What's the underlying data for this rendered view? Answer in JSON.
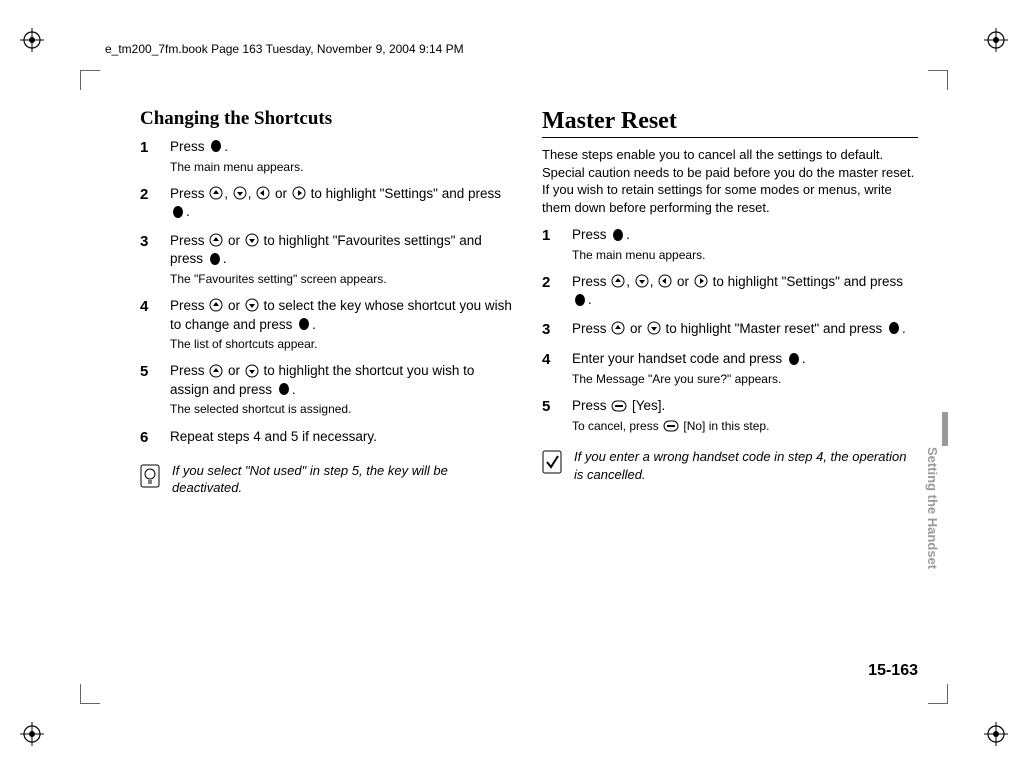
{
  "header": "e_tm200_7fm.book  Page 163  Tuesday, November 9, 2004  9:14 PM",
  "sideTab": "Setting the Handset",
  "pageNumber": "15-163",
  "left": {
    "title": "Changing the Shortcuts",
    "steps": [
      {
        "num": "1",
        "parts": [
          "Press ",
          {
            "icon": "center"
          },
          "."
        ],
        "sub": "The main menu appears."
      },
      {
        "num": "2",
        "parts": [
          "Press ",
          {
            "icon": "up"
          },
          ", ",
          {
            "icon": "down"
          },
          ", ",
          {
            "icon": "left"
          },
          " or ",
          {
            "icon": "right"
          },
          " to highlight \"Settings\" and press ",
          {
            "icon": "center"
          },
          "."
        ]
      },
      {
        "num": "3",
        "parts": [
          "Press ",
          {
            "icon": "up"
          },
          " or ",
          {
            "icon": "down"
          },
          " to highlight \"Favourites settings\" and press ",
          {
            "icon": "center"
          },
          "."
        ],
        "sub": "The \"Favourites setting\" screen appears."
      },
      {
        "num": "4",
        "parts": [
          "Press ",
          {
            "icon": "up"
          },
          " or ",
          {
            "icon": "down"
          },
          " to select the key whose shortcut you wish to change and press ",
          {
            "icon": "center"
          },
          "."
        ],
        "sub": "The list of shortcuts appear."
      },
      {
        "num": "5",
        "parts": [
          "Press ",
          {
            "icon": "up"
          },
          " or ",
          {
            "icon": "down"
          },
          " to highlight the shortcut you wish to assign and press ",
          {
            "icon": "center"
          },
          "."
        ],
        "sub": "The selected shortcut is assigned."
      },
      {
        "num": "6",
        "parts": [
          "Repeat steps 4 and 5 if necessary."
        ]
      }
    ],
    "note": {
      "icon": "bulb",
      "text": "If you select \"Not used\" in step 5, the key will be deactivated."
    }
  },
  "right": {
    "title": "Master Reset",
    "intro": "These steps enable you to cancel all the settings to default. Special caution needs to be paid before you do the master reset. If you wish to retain settings for some modes or menus, write them down before performing the reset.",
    "steps": [
      {
        "num": "1",
        "parts": [
          "Press ",
          {
            "icon": "center"
          },
          "."
        ],
        "sub": "The main menu appears."
      },
      {
        "num": "2",
        "parts": [
          "Press ",
          {
            "icon": "up"
          },
          ", ",
          {
            "icon": "down"
          },
          ", ",
          {
            "icon": "left"
          },
          " or ",
          {
            "icon": "right"
          },
          " to highlight \"Settings\" and press ",
          {
            "icon": "center"
          },
          "."
        ]
      },
      {
        "num": "3",
        "parts": [
          "Press ",
          {
            "icon": "up"
          },
          " or ",
          {
            "icon": "down"
          },
          " to highlight \"Master reset\" and press ",
          {
            "icon": "center"
          },
          "."
        ]
      },
      {
        "num": "4",
        "parts": [
          "Enter your handset code and press ",
          {
            "icon": "center"
          },
          "."
        ],
        "sub": "The Message \"Are you sure?\" appears."
      },
      {
        "num": "5",
        "parts": [
          "Press ",
          {
            "icon": "soft"
          },
          " [Yes]."
        ],
        "subParts": [
          "To cancel, press ",
          {
            "icon": "soft"
          },
          " [No] in this step."
        ]
      }
    ],
    "note": {
      "icon": "check",
      "text": "If you enter a wrong handset code in step 4, the operation is cancelled."
    }
  }
}
